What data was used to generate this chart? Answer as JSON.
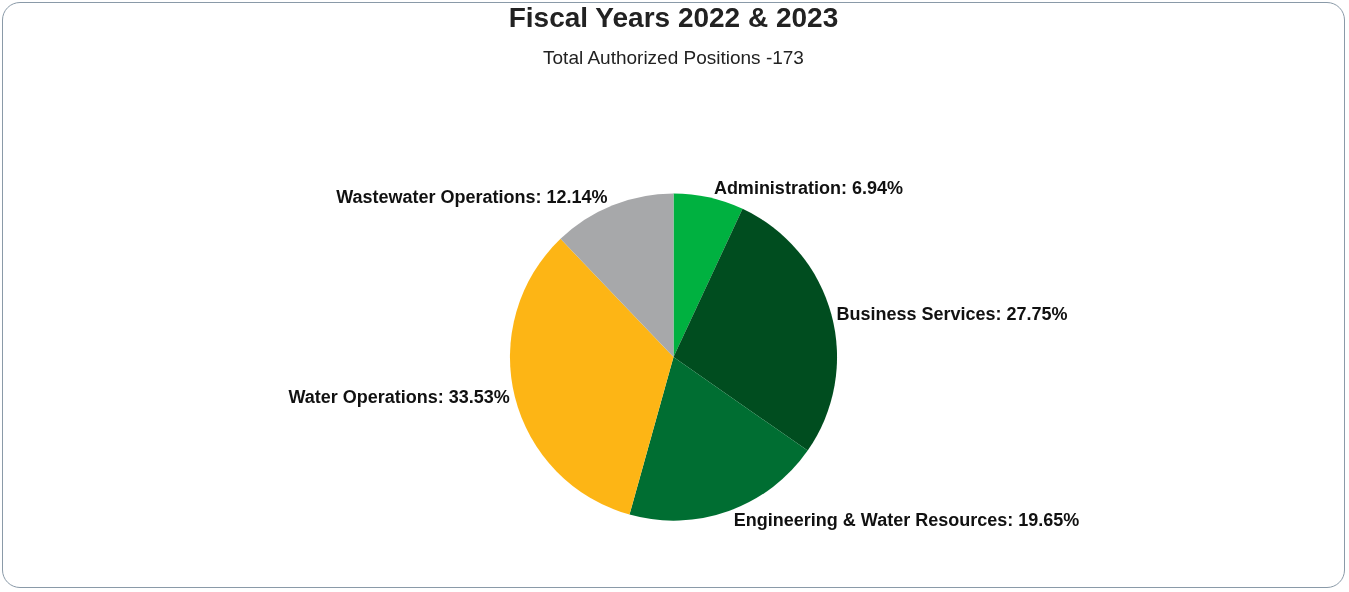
{
  "chart_data": {
    "type": "pie",
    "title": "Fiscal Years 2022 & 2023",
    "subtitle": "Total Authorized Positions -173",
    "categories": [
      "Administration",
      "Business Services",
      "Engineering & Water Resources",
      "Water Operations",
      "Wastewater Operations"
    ],
    "values": [
      6.94,
      27.75,
      19.65,
      33.53,
      12.14
    ],
    "value_labels": [
      "6.94%",
      "27.75%",
      "19.65%",
      "33.53%",
      "12.14%"
    ],
    "colors": [
      "#00b140",
      "#004d1f",
      "#006e32",
      "#fdb515",
      "#a7a8aa"
    ],
    "legend": false
  }
}
